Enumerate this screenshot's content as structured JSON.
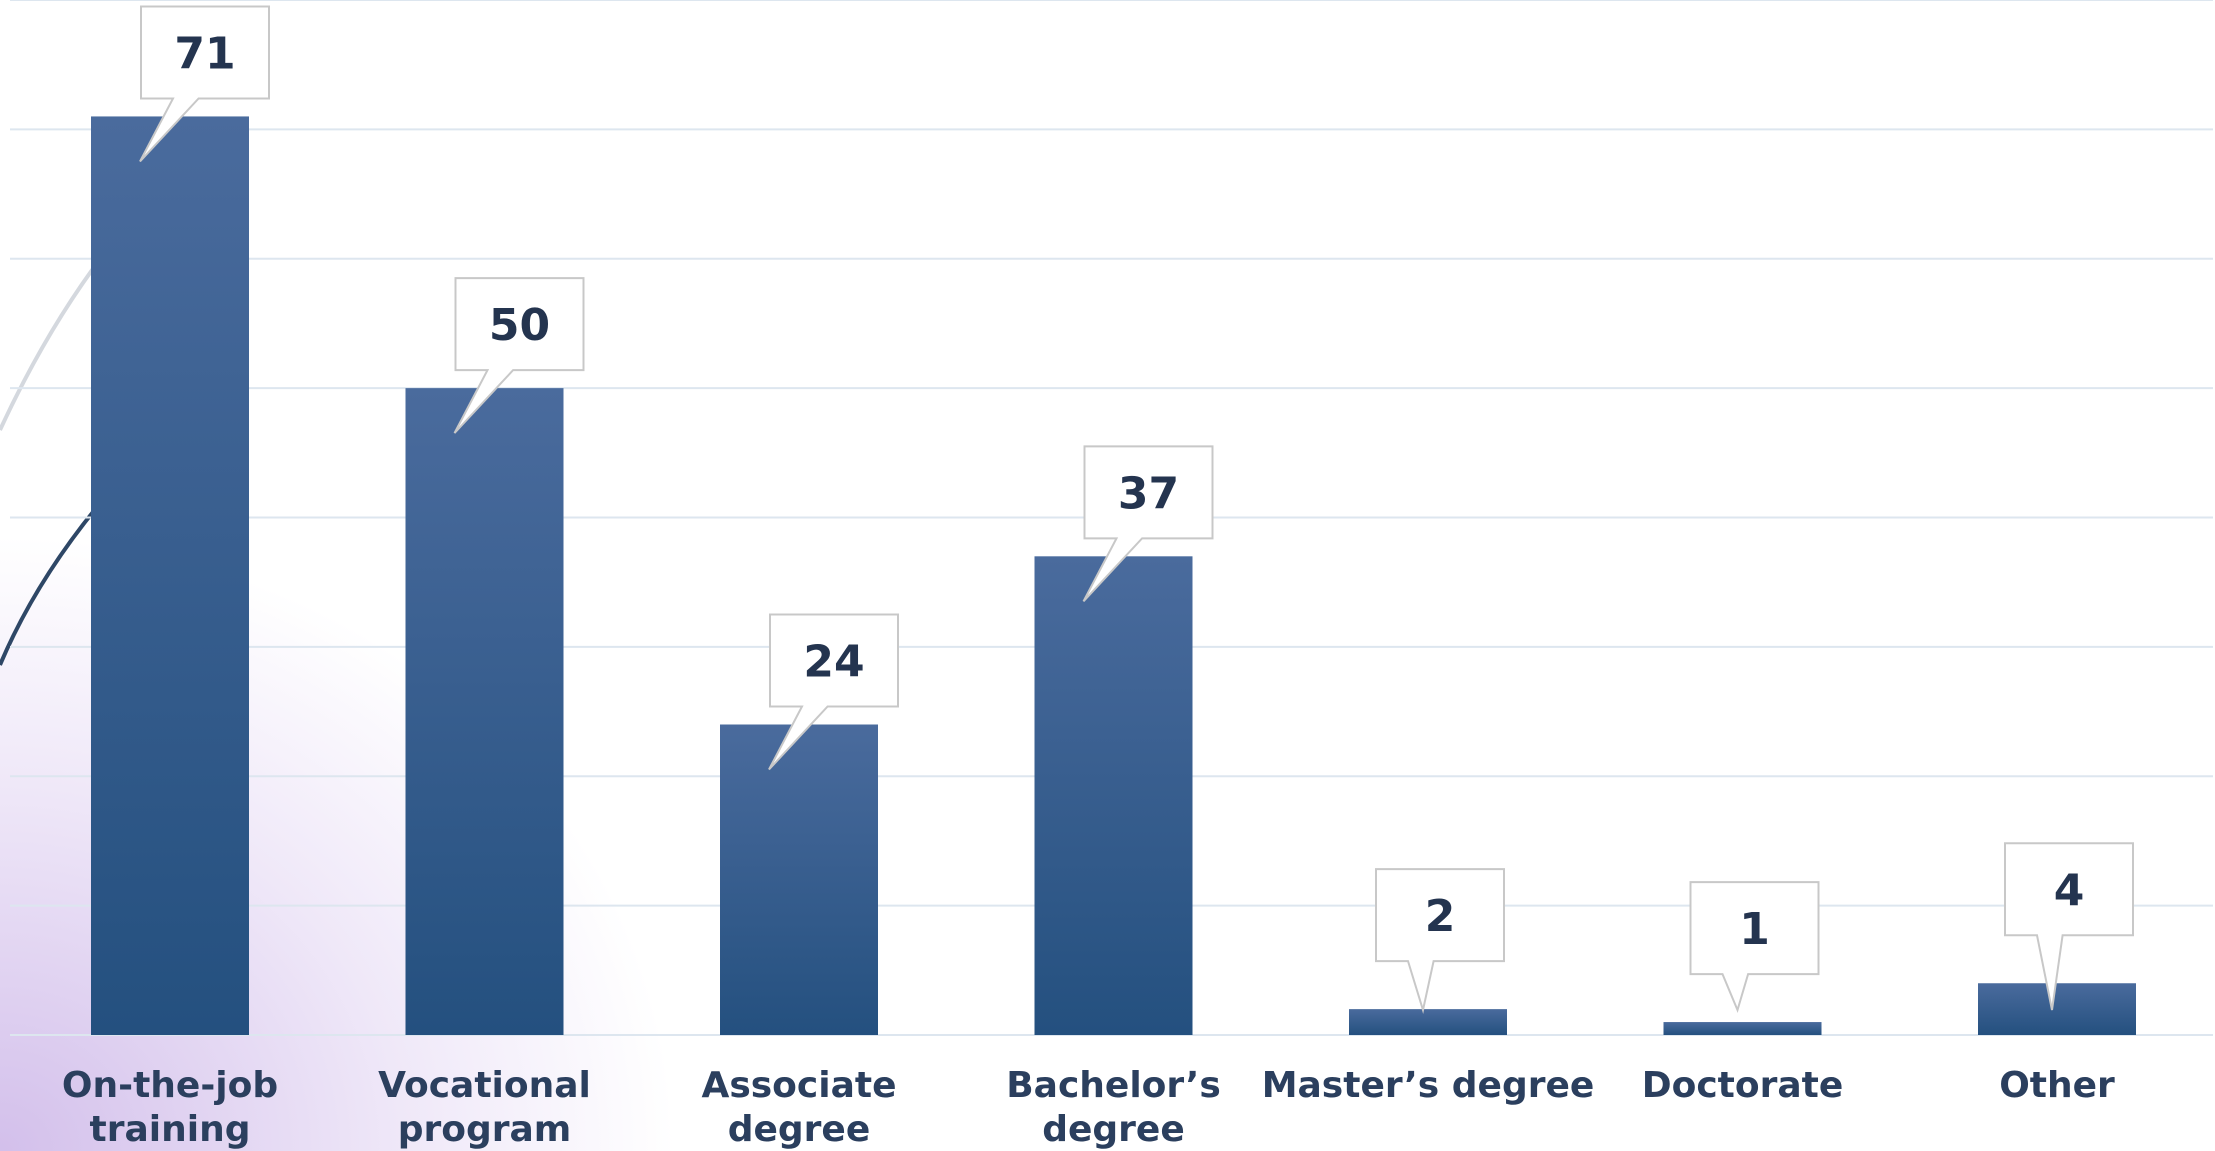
{
  "chart_data": {
    "type": "bar",
    "categories": [
      [
        "On-the-job",
        "training"
      ],
      [
        "Vocational",
        "program"
      ],
      [
        "Associate",
        "degree"
      ],
      [
        "Bachelor’s",
        "degree"
      ],
      [
        "Master’s degree"
      ],
      [
        "Doctorate"
      ],
      [
        "Other"
      ]
    ],
    "values": [
      71,
      50,
      24,
      37,
      2,
      1,
      4
    ],
    "title": "",
    "xlabel": "",
    "ylabel": "",
    "ylim": [
      0,
      80
    ],
    "grid": true,
    "legend": "none",
    "data_labels": "callout",
    "colors": {
      "bar_top": "#4a6b9d",
      "bar_bottom": "#24507f",
      "grid": "#dde6ef",
      "label_text": "#2b3f5e",
      "value_text": "#24344f",
      "callout_border": "#c8c8c8"
    }
  }
}
